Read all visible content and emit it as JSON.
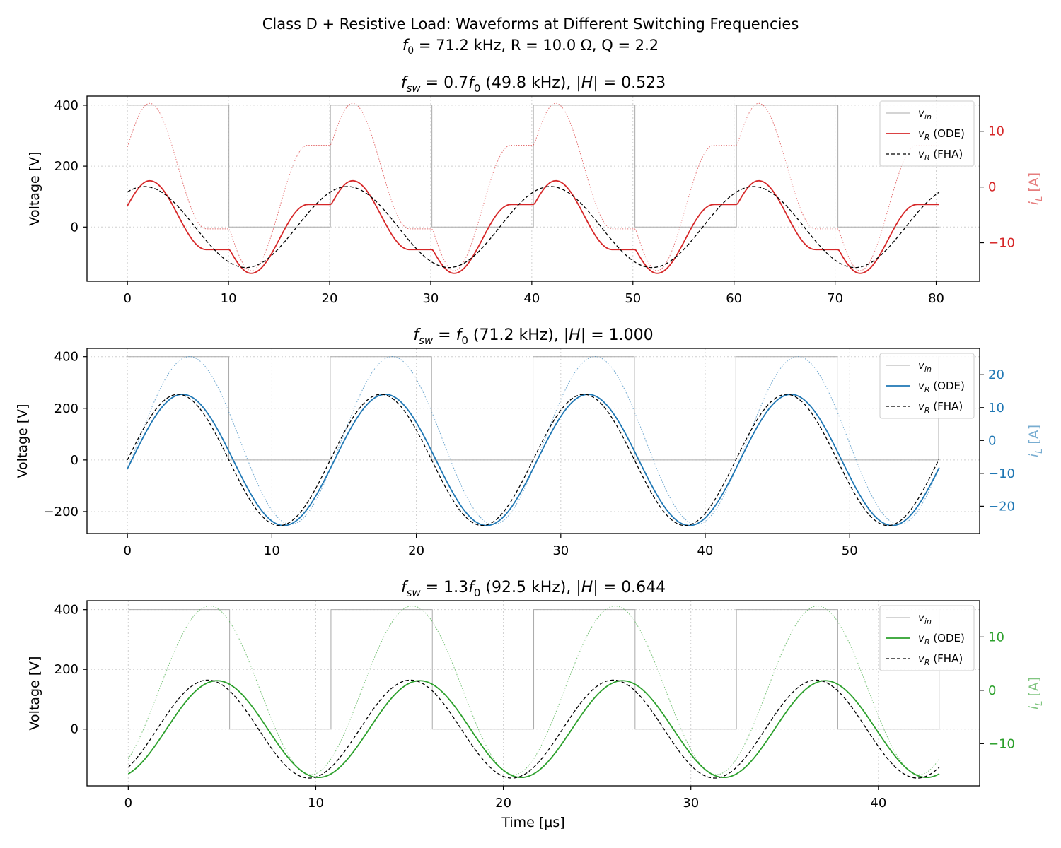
{
  "figure": {
    "suptitle_line1": "Class D + Resistive Load: Waveforms at Different Switching Frequencies",
    "suptitle_line2": "f₀ = 71.2 kHz,  R = 10.0 Ω,  Q = 2.2",
    "shared_xlabel": "Time [µs]"
  },
  "legend_labels": [
    "v_in",
    "v_R (ODE)",
    "v_R (FHA)"
  ],
  "chart_data": [
    {
      "type": "line",
      "title": "f_sw = 0.7f₀  (49.8 kHz),  |H| = 0.523",
      "ylabel": "Voltage [V]",
      "y2label": "i_L [A]",
      "color": "#d62728",
      "period_us": 20.08,
      "t_end_us": 80.3,
      "xlim": [
        -4,
        84.3
      ],
      "ylim": [
        -178,
        430
      ],
      "y2lim": [
        -16.9,
        16.3
      ],
      "xticks": [
        0,
        10,
        20,
        30,
        40,
        50,
        60,
        70,
        80
      ],
      "yticks": [
        0,
        200,
        400
      ],
      "y2ticks": [
        -10,
        0,
        10
      ],
      "grid": true,
      "legend_position": "upper right",
      "series": [
        {
          "name": "v_in",
          "kind": "square",
          "high": 400,
          "low": 0
        },
        {
          "name": "v_R (ODE)",
          "peak_v": 152,
          "fha_peak_v": 133,
          "boundary_v": 70,
          "secondary_peak_v": 74
        },
        {
          "name": "v_R (FHA)",
          "amplitude": 133,
          "value_at_t0": 115
        },
        {
          "name": "i_L",
          "peak_a": 15.0,
          "boundary_a": 7.2,
          "secondary_peak_a": 7.5
        }
      ]
    },
    {
      "type": "line",
      "title": "f_sw = f₀  (71.2 kHz),  |H| = 1.000",
      "ylabel": "Voltage [V]",
      "y2label": "i_L [A]",
      "color": "#1f77b4",
      "period_us": 14.04,
      "t_end_us": 56.2,
      "xlim": [
        -2.8,
        59.0
      ],
      "ylim": [
        -285,
        432
      ],
      "y2lim": [
        -28.3,
        28.0
      ],
      "xticks": [
        0,
        10,
        20,
        30,
        40,
        50
      ],
      "yticks": [
        -200,
        0,
        200,
        400
      ],
      "y2ticks": [
        -20,
        -10,
        0,
        10,
        20
      ],
      "grid": true,
      "legend_position": "upper right",
      "series": [
        {
          "name": "v_in",
          "kind": "square",
          "high": 400,
          "low": 0
        },
        {
          "name": "v_R (ODE)",
          "peak_v": 254,
          "value_at_t0": -28
        },
        {
          "name": "v_R (FHA)",
          "amplitude": 254,
          "value_at_t0": 0
        },
        {
          "name": "i_L",
          "peak_a": 25.5
        }
      ]
    },
    {
      "type": "line",
      "title": "f_sw = 1.3f₀  (92.5 kHz),  |H| = 0.644",
      "ylabel": "Voltage [V]",
      "y2label": "i_L [A]",
      "color": "#2ca02c",
      "period_us": 10.81,
      "t_end_us": 43.25,
      "xlim": [
        -2.2,
        45.4
      ],
      "ylim": [
        -190,
        430
      ],
      "y2lim": [
        -17.9,
        16.8
      ],
      "xticks": [
        0,
        10,
        20,
        30,
        40
      ],
      "yticks": [
        0,
        200,
        400
      ],
      "y2ticks": [
        -10,
        0,
        10
      ],
      "grid": true,
      "legend_position": "upper right",
      "xlabel": "Time [µs]",
      "series": [
        {
          "name": "v_in",
          "kind": "square",
          "high": 400,
          "low": 0
        },
        {
          "name": "v_R (ODE)",
          "peak_v": 162,
          "value_at_t0": -150
        },
        {
          "name": "v_R (FHA)",
          "amplitude": 164,
          "value_at_t0": -128
        },
        {
          "name": "i_L",
          "peak_a": 15.8
        }
      ]
    }
  ]
}
